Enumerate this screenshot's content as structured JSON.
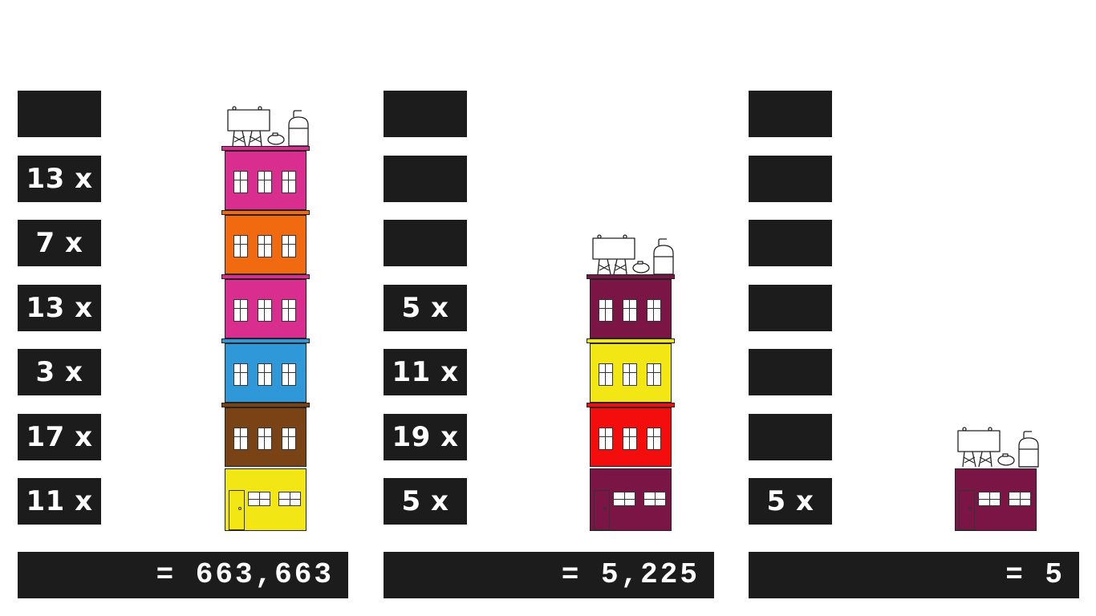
{
  "columns": [
    {
      "id": "left",
      "labels": [
        "",
        "13 x",
        "7 x",
        "13 x",
        "3 x",
        "17 x",
        "11 x"
      ],
      "product": "= 663,663",
      "building_floors_top_to_bottom": [
        {
          "color": "#d92d8f",
          "type": "floor"
        },
        {
          "color": "#f26a0f",
          "type": "floor"
        },
        {
          "color": "#d92d8f",
          "type": "floor"
        },
        {
          "color": "#2e98d8",
          "type": "floor"
        },
        {
          "color": "#7a4316",
          "type": "floor"
        },
        {
          "color": "#f2e614",
          "type": "ground"
        }
      ]
    },
    {
      "id": "middle",
      "labels": [
        "",
        "",
        "",
        "5 x",
        "11 x",
        "19 x",
        "5 x"
      ],
      "product": "= 5,225",
      "building_floors_top_to_bottom": [
        {
          "color": "#7a1545",
          "type": "floor"
        },
        {
          "color": "#f2e614",
          "type": "floor"
        },
        {
          "color": "#f40d0d",
          "type": "floor"
        },
        {
          "color": "#7a1545",
          "type": "ground"
        }
      ]
    },
    {
      "id": "right",
      "labels": [
        "",
        "",
        "",
        "",
        "",
        "",
        "5 x"
      ],
      "product": "= 5",
      "building_floors_top_to_bottom": [
        {
          "color": "#7a1545",
          "type": "ground"
        }
      ]
    }
  ],
  "icons": {
    "roof": "rooftop-billboard-and-water-tank-icon",
    "door": "door-icon",
    "window": "window-icon"
  }
}
